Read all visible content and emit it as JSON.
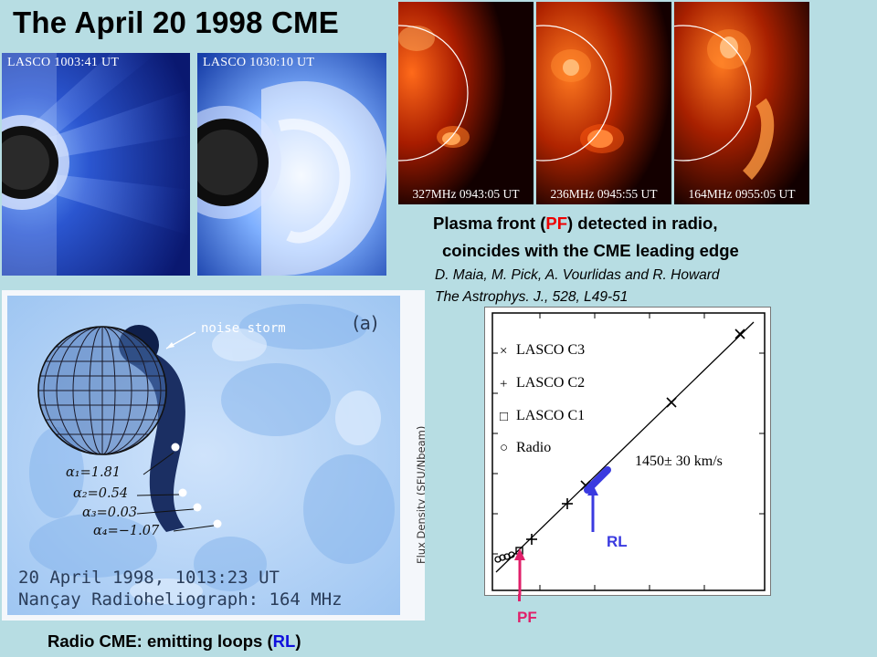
{
  "slide": {
    "title": "The April 20 1998 CME"
  },
  "lasco_panels": [
    {
      "label": "LASCO 1003:41 UT"
    },
    {
      "label": "LASCO 1030:10 UT"
    }
  ],
  "radio_panels": [
    {
      "label": "327MHz 0943:05 UT"
    },
    {
      "label": "236MHz 0945:55 UT"
    },
    {
      "label": "164MHz 0955:05 UT"
    }
  ],
  "caption": {
    "line1_pre": "Plasma front  (",
    "line1_pf": "PF",
    "line1_post": ") detected in radio,",
    "line2": "coincides with the CME leading edge",
    "authors": "D. Maia, M. Pick, A. Vourlidas and R. Howard",
    "journal": "The Astrophys. J., 528, L49-51"
  },
  "radio_map": {
    "panel_label": "(a)",
    "noise_storm": "noise storm",
    "alphas": [
      "α₁=1.81",
      "α₂=0.54",
      "α₃=0.03",
      "α₄=−1.07"
    ],
    "date_line": "20 April 1998, 1013:23 UT",
    "instrument_line": "Nançay Radioheliograph: 164 MHz",
    "axis_label": "Flux Density (SFU/Nbeam)"
  },
  "bottom_caption": {
    "pre": "Radio CME: emitting loops (",
    "rl": "RL",
    "post": ")"
  },
  "plot": {
    "legend": [
      "LASCO C3",
      "LASCO C2",
      "LASCO C1",
      "Radio"
    ],
    "legend_symbols": [
      "×",
      "+",
      "□",
      "○"
    ],
    "speed": "1450± 30 km/s",
    "rl_label": "RL",
    "pf_label": "PF",
    "colors": {
      "rl": "#3a3ae0",
      "pf": "#e0206a"
    }
  }
}
